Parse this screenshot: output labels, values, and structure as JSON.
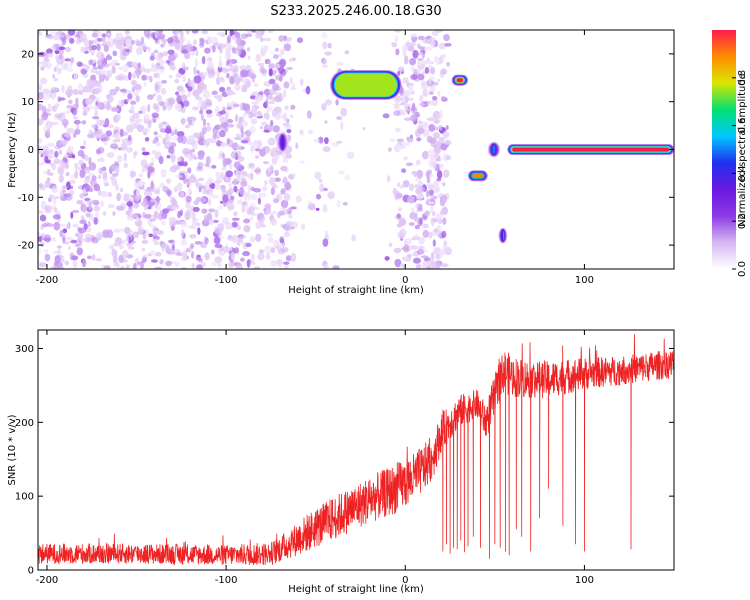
{
  "figure_title": "S233.2025.246.00.18.G30",
  "colors": {
    "snr_line": "#ee2222",
    "frame": "#000000",
    "colormap_stops": [
      "#ffffff",
      "#d7b7f2",
      "#8c3ae6",
      "#6a18e0",
      "#2030f0",
      "#00c8ff",
      "#00e070",
      "#d8e600",
      "#ff8c00",
      "#ff1a4a"
    ]
  },
  "chart_data": [
    {
      "type": "heatmap",
      "title": "",
      "xlabel": "Height of straight line (km)",
      "ylabel": "Frequency (Hz)",
      "xlim": [
        -205,
        150
      ],
      "ylim": [
        -25,
        25
      ],
      "xticks": [
        {
          "value": -200,
          "label": "-200"
        },
        {
          "value": -100,
          "label": "-100"
        },
        {
          "value": 0,
          "label": "0"
        },
        {
          "value": 100,
          "label": "100"
        }
      ],
      "yticks": [
        {
          "value": -20,
          "label": "-20"
        },
        {
          "value": -10,
          "label": "-10"
        },
        {
          "value": 0,
          "label": "0"
        },
        {
          "value": 10,
          "label": "10"
        },
        {
          "value": 20,
          "label": "20"
        }
      ],
      "colorbar": {
        "label": "Normalized spectral amplitude",
        "range": [
          0,
          1
        ],
        "ticks": [
          {
            "value": 0.0,
            "label": "0.0"
          },
          {
            "value": 0.2,
            "label": "0.2"
          },
          {
            "value": 0.4,
            "label": "0.4"
          },
          {
            "value": 0.6,
            "label": "0.6"
          },
          {
            "value": 0.8,
            "label": "0.8"
          }
        ]
      },
      "noise_region": {
        "x_start": -205,
        "x_end": 24,
        "amplitude": 0.15,
        "gaps": [
          [
            -62,
            -45
          ],
          [
            -43,
            -5
          ],
          [
            -28,
            -12
          ]
        ]
      },
      "features": [
        {
          "name": "patch-near-minus70",
          "x": [
            -72,
            -65
          ],
          "freq": [
            0,
            3
          ],
          "amplitude": 0.35
        },
        {
          "name": "band-15hz",
          "x": [
            -42,
            -2
          ],
          "freq": [
            11,
            16
          ],
          "amplitude": 0.75
        },
        {
          "name": "blob-30km-15hz",
          "x": [
            26,
            35
          ],
          "freq": [
            14,
            15
          ],
          "amplitude": 1.0
        },
        {
          "name": "blob-40km-minus6hz",
          "x": [
            35,
            46
          ],
          "freq": [
            -6,
            -5
          ],
          "amplitude": 0.9
        },
        {
          "name": "blob-55km-minus18hz",
          "x": [
            52,
            57
          ],
          "freq": [
            -19,
            -17
          ],
          "amplitude": 0.6
        },
        {
          "name": "blob-48km-0hz",
          "x": [
            46,
            53
          ],
          "freq": [
            -1,
            1
          ],
          "amplitude": 0.5
        },
        {
          "name": "carrier-line-0hz",
          "x": [
            57,
            150
          ],
          "freq": [
            -0.5,
            0.5
          ],
          "amplitude": 1.0
        }
      ]
    },
    {
      "type": "line",
      "title": "",
      "xlabel": "Height of straight line (km)",
      "ylabel": "SNR (10 * v/v)",
      "xlim": [
        -205,
        150
      ],
      "ylim": [
        0,
        325
      ],
      "xticks": [
        {
          "value": -200,
          "label": "-200"
        },
        {
          "value": -100,
          "label": "-100"
        },
        {
          "value": 0,
          "label": "0"
        },
        {
          "value": 100,
          "label": "100"
        }
      ],
      "yticks": [
        {
          "value": 0,
          "label": "0"
        },
        {
          "value": 100,
          "label": "100"
        },
        {
          "value": 200,
          "label": "200"
        },
        {
          "value": 300,
          "label": "300"
        }
      ],
      "series": [
        {
          "name": "SNR",
          "trend_x": [
            -205,
            -150,
            -100,
            -75,
            -65,
            -55,
            -40,
            -20,
            -5,
            5,
            15,
            20,
            30,
            40,
            45,
            50,
            55,
            60,
            70,
            80,
            90,
            100,
            120,
            150
          ],
          "trend_y": [
            22,
            22,
            20,
            22,
            35,
            50,
            70,
            95,
            110,
            125,
            150,
            185,
            215,
            225,
            200,
            235,
            270,
            262,
            258,
            258,
            262,
            266,
            270,
            280
          ],
          "noise_amplitude": [
            14,
            14,
            14,
            16,
            20,
            26,
            30,
            32,
            34,
            34,
            30,
            26,
            22,
            20,
            26,
            30,
            30,
            28,
            26,
            25,
            24,
            22,
            20,
            20
          ],
          "dropouts": [
            {
              "x": 21,
              "y": 25
            },
            {
              "x": 23,
              "y": 35
            },
            {
              "x": 25,
              "y": 22
            },
            {
              "x": 27,
              "y": 30
            },
            {
              "x": 29,
              "y": 28
            },
            {
              "x": 31,
              "y": 40
            },
            {
              "x": 33,
              "y": 24
            },
            {
              "x": 35,
              "y": 32
            },
            {
              "x": 38,
              "y": 45
            },
            {
              "x": 42,
              "y": 30
            },
            {
              "x": 47,
              "y": 15
            },
            {
              "x": 50,
              "y": 35
            },
            {
              "x": 53,
              "y": 30
            },
            {
              "x": 56,
              "y": 25
            },
            {
              "x": 58,
              "y": 20
            },
            {
              "x": 62,
              "y": 55
            },
            {
              "x": 65,
              "y": 45
            },
            {
              "x": 70,
              "y": 25
            },
            {
              "x": 75,
              "y": 70
            },
            {
              "x": 80,
              "y": 110
            },
            {
              "x": 88,
              "y": 60
            },
            {
              "x": 95,
              "y": 35
            },
            {
              "x": 100,
              "y": 25
            },
            {
              "x": 126,
              "y": 28
            }
          ]
        }
      ]
    }
  ]
}
